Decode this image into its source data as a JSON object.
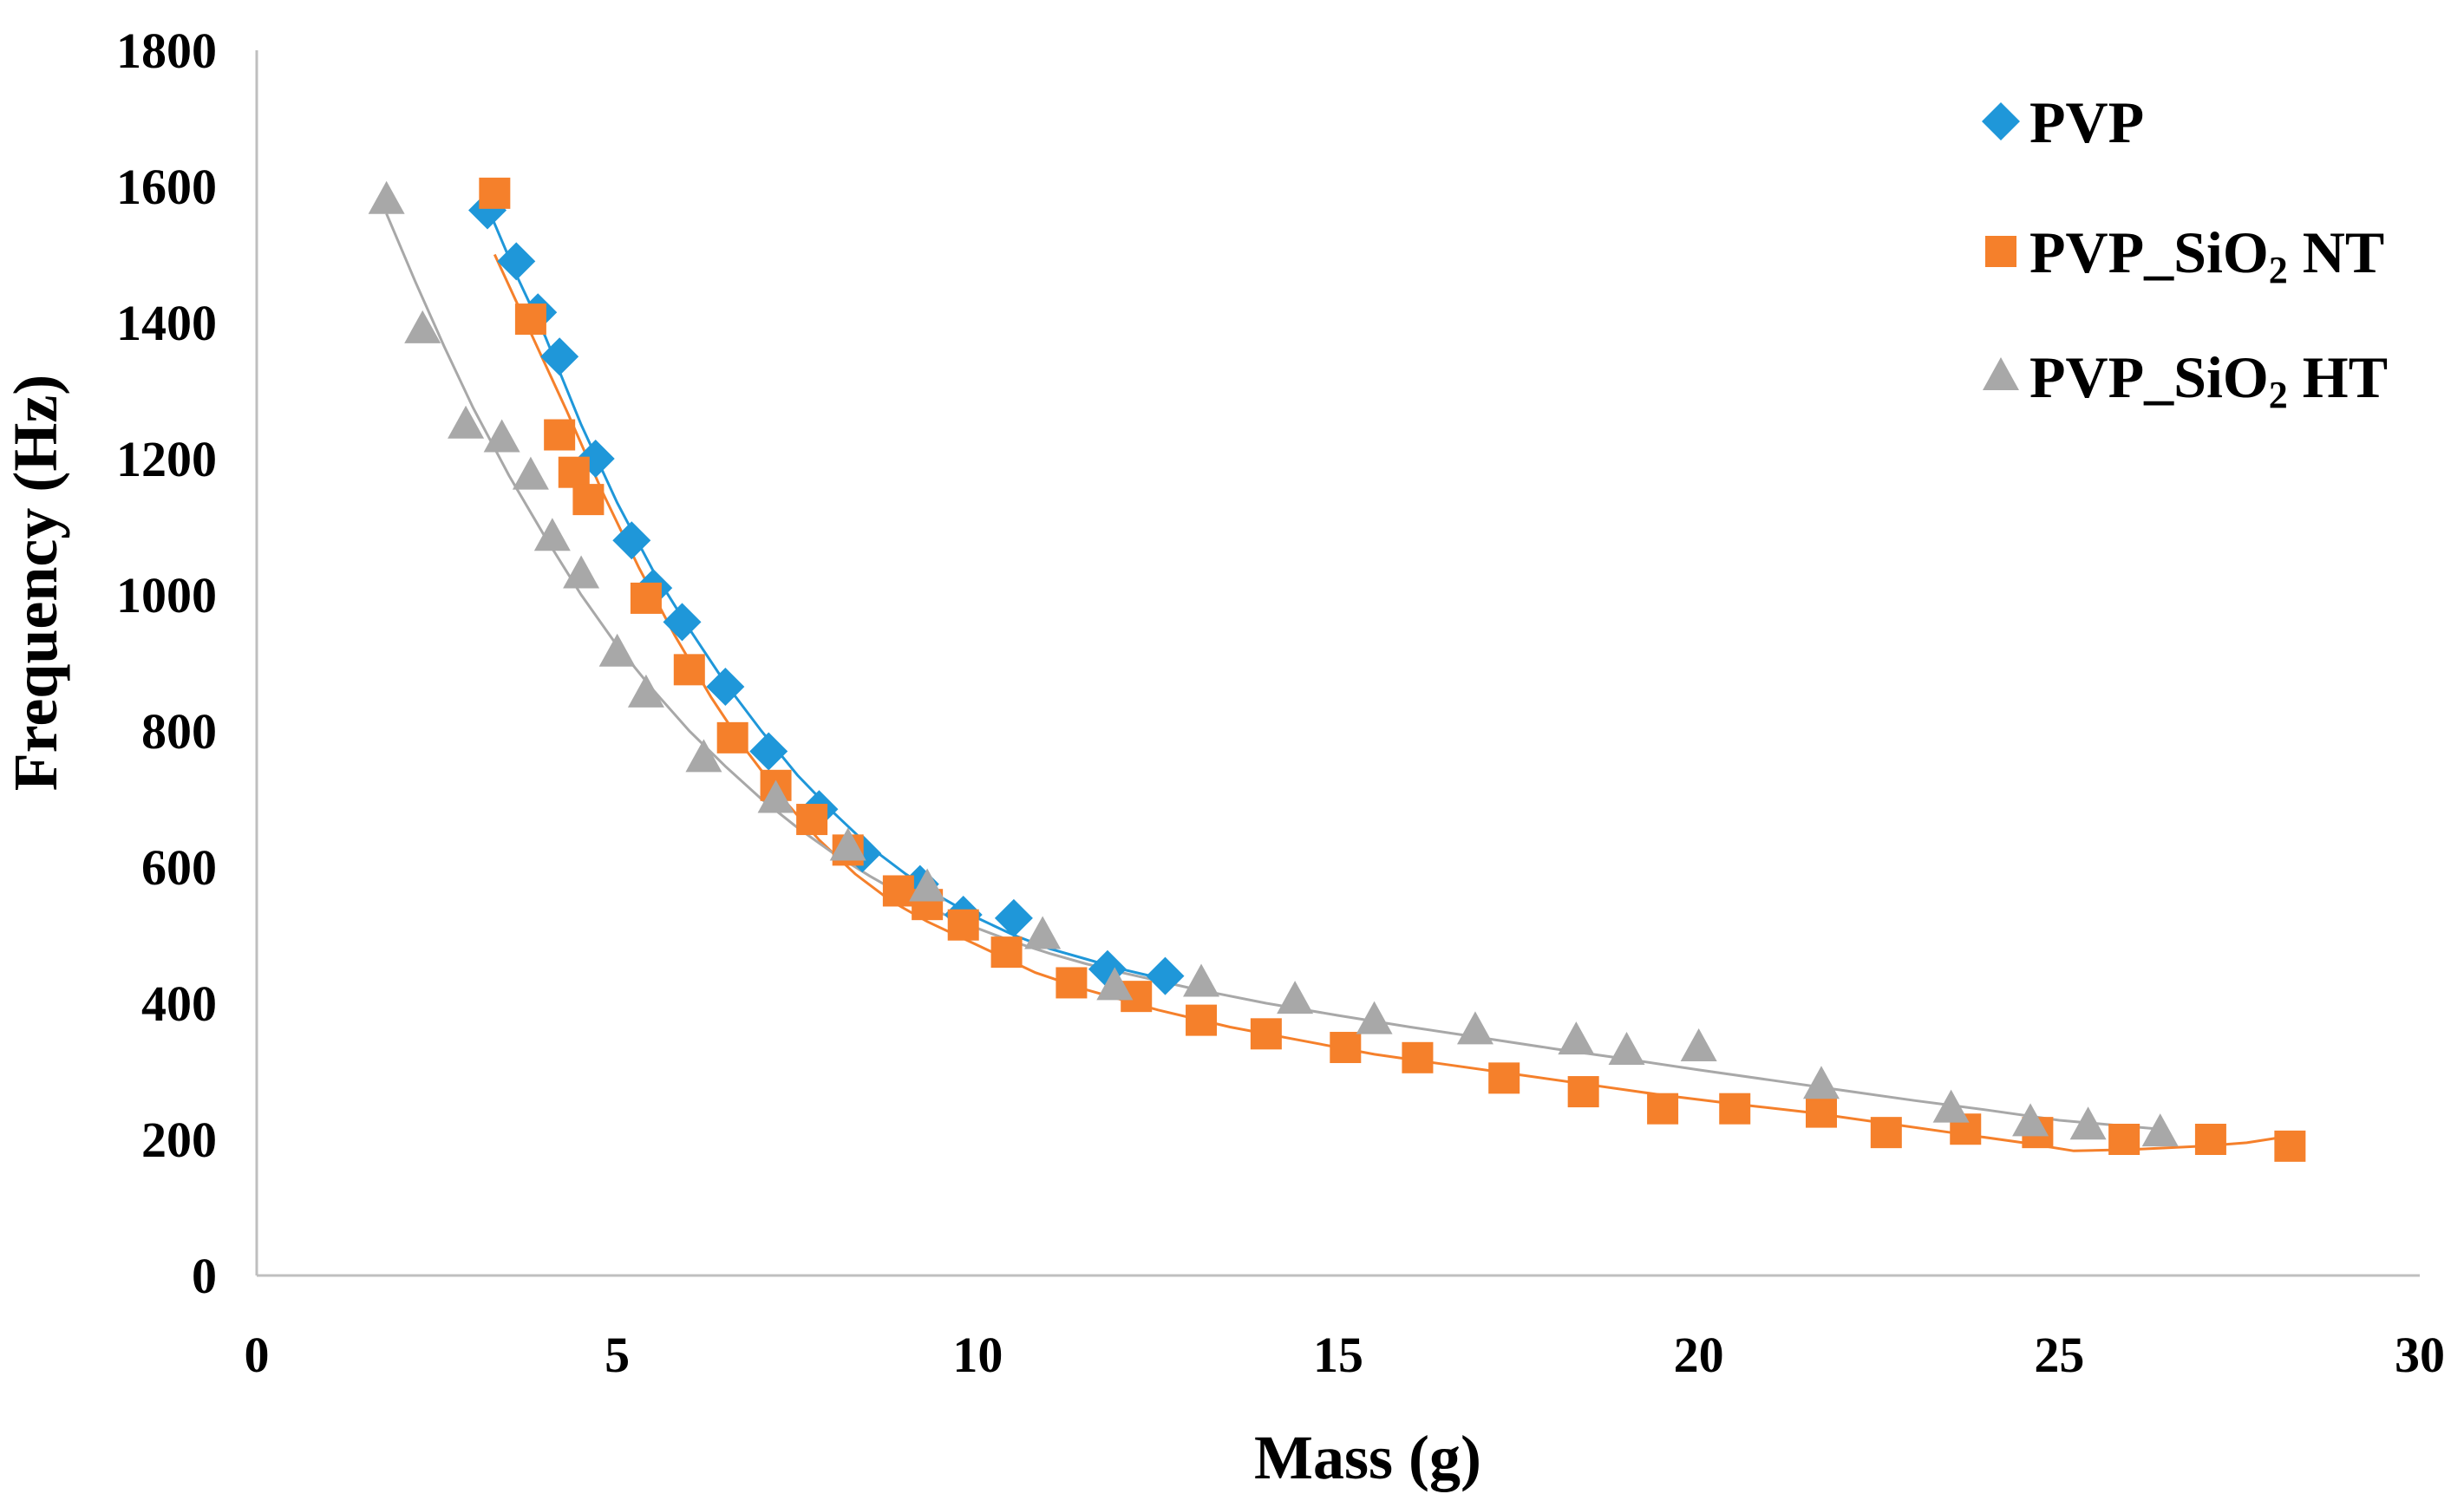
{
  "chart_data": {
    "type": "scatter",
    "title": "",
    "xlabel": "Mass (g)",
    "ylabel": "Frequency (Hz)",
    "xlim": [
      0,
      30
    ],
    "ylim": [
      0,
      1800
    ],
    "x_ticks": [
      0,
      5,
      10,
      15,
      20,
      25,
      30
    ],
    "y_ticks": [
      0,
      200,
      400,
      600,
      800,
      1000,
      1200,
      1400,
      1600,
      1800
    ],
    "x_tick_labels": [
      "0",
      "5",
      "10",
      "15",
      "20",
      "25",
      "30"
    ],
    "y_tick_labels": [
      "0",
      "200",
      "400",
      "600",
      "800",
      "1000",
      "1200",
      "1400",
      "1600",
      "1800"
    ],
    "grid": false,
    "legend_position": "top-right",
    "series": [
      {
        "name": "PVP",
        "legend_prefix": "PVP",
        "legend_sub": "",
        "legend_suffix": "",
        "marker": "diamond",
        "color": "#1f97d9",
        "points": [
          [
            3.2,
            1565
          ],
          [
            3.6,
            1490
          ],
          [
            3.9,
            1415
          ],
          [
            4.2,
            1350
          ],
          [
            4.7,
            1200
          ],
          [
            5.2,
            1080
          ],
          [
            5.5,
            1010
          ],
          [
            5.9,
            960
          ],
          [
            6.5,
            865
          ],
          [
            7.1,
            770
          ],
          [
            7.8,
            685
          ],
          [
            8.4,
            620
          ],
          [
            9.2,
            575
          ],
          [
            9.8,
            530
          ],
          [
            10.5,
            525
          ],
          [
            11.8,
            450
          ],
          [
            12.6,
            440
          ]
        ],
        "trend": [
          [
            3.2,
            1570
          ],
          [
            3.6,
            1470
          ],
          [
            4.0,
            1380
          ],
          [
            4.5,
            1250
          ],
          [
            5.0,
            1135
          ],
          [
            5.5,
            1035
          ],
          [
            6.0,
            950
          ],
          [
            6.5,
            870
          ],
          [
            7.0,
            800
          ],
          [
            7.5,
            735
          ],
          [
            8.0,
            680
          ],
          [
            8.5,
            630
          ],
          [
            9.0,
            590
          ],
          [
            9.5,
            555
          ],
          [
            10.0,
            525
          ],
          [
            10.5,
            500
          ],
          [
            11.0,
            480
          ],
          [
            11.5,
            465
          ],
          [
            12.0,
            450
          ],
          [
            12.6,
            435
          ]
        ]
      },
      {
        "name": "PVP_SiO₂ NT",
        "legend_prefix": "PVP_SiO",
        "legend_sub": "2",
        "legend_suffix": " NT",
        "marker": "square",
        "color": "#f5802b",
        "points": [
          [
            3.3,
            1590
          ],
          [
            3.8,
            1405
          ],
          [
            4.2,
            1235
          ],
          [
            4.4,
            1180
          ],
          [
            4.6,
            1140
          ],
          [
            5.4,
            995
          ],
          [
            6.0,
            890
          ],
          [
            6.6,
            790
          ],
          [
            7.2,
            720
          ],
          [
            7.7,
            670
          ],
          [
            8.2,
            625
          ],
          [
            8.9,
            565
          ],
          [
            9.3,
            545
          ],
          [
            9.8,
            515
          ],
          [
            10.4,
            475
          ],
          [
            11.3,
            430
          ],
          [
            12.2,
            410
          ],
          [
            13.1,
            375
          ],
          [
            14.0,
            355
          ],
          [
            15.1,
            335
          ],
          [
            16.1,
            320
          ],
          [
            17.3,
            290
          ],
          [
            18.4,
            270
          ],
          [
            19.5,
            245
          ],
          [
            20.5,
            245
          ],
          [
            21.7,
            240
          ],
          [
            22.6,
            210
          ],
          [
            23.7,
            215
          ],
          [
            24.7,
            210
          ],
          [
            25.9,
            200
          ],
          [
            27.1,
            200
          ],
          [
            28.2,
            190
          ]
        ],
        "trend": [
          [
            3.3,
            1500
          ],
          [
            3.8,
            1385
          ],
          [
            4.3,
            1270
          ],
          [
            4.8,
            1150
          ],
          [
            5.3,
            1040
          ],
          [
            5.8,
            940
          ],
          [
            6.3,
            850
          ],
          [
            6.8,
            770
          ],
          [
            7.3,
            700
          ],
          [
            7.8,
            640
          ],
          [
            8.3,
            590
          ],
          [
            8.8,
            550
          ],
          [
            9.3,
            520
          ],
          [
            9.8,
            495
          ],
          [
            10.3,
            470
          ],
          [
            10.8,
            445
          ],
          [
            11.5,
            420
          ],
          [
            12.5,
            390
          ],
          [
            13.5,
            365
          ],
          [
            14.5,
            345
          ],
          [
            15.5,
            325
          ],
          [
            16.5,
            310
          ],
          [
            17.5,
            295
          ],
          [
            18.5,
            280
          ],
          [
            19.5,
            265
          ],
          [
            20.5,
            252
          ],
          [
            21.5,
            240
          ],
          [
            22.5,
            225
          ],
          [
            23.5,
            210
          ],
          [
            24.5,
            195
          ],
          [
            25.2,
            183
          ],
          [
            26.0,
            185
          ],
          [
            27.0,
            190
          ],
          [
            27.6,
            195
          ],
          [
            28.2,
            205
          ]
        ]
      },
      {
        "name": "PVP_SiO₂ HT",
        "legend_prefix": "PVP_SiO",
        "legend_sub": "2",
        "legend_suffix": " HT",
        "marker": "triangle",
        "color": "#a8a8a8",
        "points": [
          [
            1.8,
            1580
          ],
          [
            2.3,
            1390
          ],
          [
            2.9,
            1250
          ],
          [
            3.4,
            1230
          ],
          [
            3.8,
            1175
          ],
          [
            4.1,
            1085
          ],
          [
            4.5,
            1030
          ],
          [
            5.0,
            915
          ],
          [
            5.4,
            855
          ],
          [
            6.2,
            760
          ],
          [
            7.2,
            700
          ],
          [
            8.2,
            630
          ],
          [
            9.3,
            570
          ],
          [
            10.9,
            500
          ],
          [
            11.9,
            425
          ],
          [
            13.1,
            430
          ],
          [
            14.4,
            405
          ],
          [
            15.5,
            375
          ],
          [
            16.9,
            360
          ],
          [
            18.3,
            345
          ],
          [
            19.0,
            330
          ],
          [
            20.0,
            335
          ],
          [
            21.7,
            280
          ],
          [
            23.5,
            245
          ],
          [
            24.6,
            225
          ],
          [
            25.4,
            220
          ],
          [
            26.4,
            210
          ]
        ],
        "trend": [
          [
            1.8,
            1560
          ],
          [
            2.2,
            1460
          ],
          [
            2.6,
            1365
          ],
          [
            3.0,
            1275
          ],
          [
            3.5,
            1175
          ],
          [
            4.0,
            1085
          ],
          [
            4.5,
            1000
          ],
          [
            5.0,
            925
          ],
          [
            5.5,
            860
          ],
          [
            6.0,
            800
          ],
          [
            6.5,
            748
          ],
          [
            7.0,
            700
          ],
          [
            7.5,
            658
          ],
          [
            8.0,
            620
          ],
          [
            8.5,
            587
          ],
          [
            9.0,
            557
          ],
          [
            9.5,
            532
          ],
          [
            10.0,
            510
          ],
          [
            10.5,
            490
          ],
          [
            11.0,
            473
          ],
          [
            11.5,
            458
          ],
          [
            12.0,
            445
          ],
          [
            13.0,
            421
          ],
          [
            14.0,
            400
          ],
          [
            15.0,
            382
          ],
          [
            16.0,
            365
          ],
          [
            17.0,
            349
          ],
          [
            18.0,
            333
          ],
          [
            19.0,
            318
          ],
          [
            20.0,
            302
          ],
          [
            21.0,
            287
          ],
          [
            22.0,
            272
          ],
          [
            23.0,
            257
          ],
          [
            24.0,
            243
          ],
          [
            25.0,
            228
          ],
          [
            26.4,
            215
          ]
        ]
      }
    ]
  }
}
